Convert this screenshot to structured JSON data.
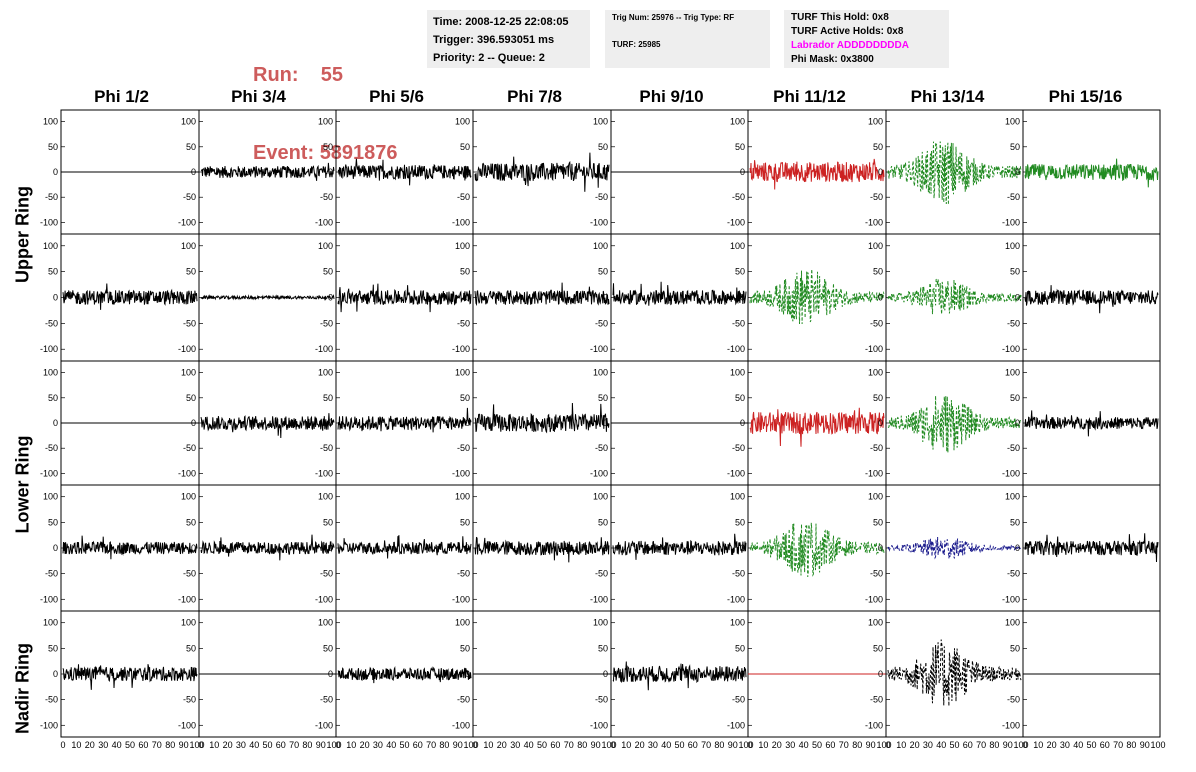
{
  "header": {
    "run_label": "Run:",
    "run_value": "55",
    "event_label": "Event:",
    "event_value": "5891876",
    "time": "Time: 2008-12-25 22:08:05",
    "trigger": "Trigger: 396.593051 ms",
    "priority": "Priority: 2 -- Queue: 2",
    "trig_num": "Trig Num: 25976 -- Trig Type: RF",
    "turf": "TURF: 25985",
    "turf_this_hold": "TURF This Hold: 0x8",
    "turf_active_holds": "TURF Active Holds: 0x8",
    "labrador": "Labrador ADDDDDDDDA",
    "phi_mask": "Phi Mask: 0x3800"
  },
  "phi_columns": [
    "Phi 1/2",
    "Phi 3/4",
    "Phi 5/6",
    "Phi 7/8",
    "Phi 9/10",
    "Phi 11/12",
    "Phi 13/14",
    "Phi 15/16"
  ],
  "rings": [
    "Upper Ring",
    "Lower Ring",
    "Nadir Ring"
  ],
  "y_ticks": [
    "100",
    "50",
    "0",
    "-50",
    "-100"
  ],
  "x_ticks": [
    "0",
    "10",
    "20",
    "30",
    "40",
    "50",
    "60",
    "70",
    "80",
    "90",
    "100"
  ],
  "colors": {
    "black": "#000000",
    "red": "#cc2222",
    "green": "#228b22",
    "blue": "#1a1a8c",
    "header_red": "#cd5c5c",
    "magenta": "#ff00ff"
  },
  "panels": [
    [
      {
        "c": "black",
        "a": 0,
        "d": false
      },
      {
        "c": "black",
        "a": 12,
        "d": false
      },
      {
        "c": "black",
        "a": 14,
        "d": false
      },
      {
        "c": "black",
        "a": 18,
        "d": false
      },
      {
        "c": "black",
        "a": 0,
        "d": false
      },
      {
        "c": "red",
        "a": 20,
        "d": false
      },
      {
        "c": "green",
        "a": 35,
        "d": true
      },
      {
        "c": "green",
        "a": 16,
        "d": false
      }
    ],
    [
      {
        "c": "black",
        "a": 14,
        "d": false
      },
      {
        "c": "black",
        "a": 3,
        "d": false
      },
      {
        "c": "black",
        "a": 14,
        "d": false
      },
      {
        "c": "black",
        "a": 14,
        "d": false
      },
      {
        "c": "black",
        "a": 14,
        "d": false
      },
      {
        "c": "green",
        "a": 30,
        "d": true
      },
      {
        "c": "green",
        "a": 20,
        "d": true
      },
      {
        "c": "black",
        "a": 14,
        "d": false
      }
    ],
    [
      {
        "c": "black",
        "a": 0,
        "d": false
      },
      {
        "c": "black",
        "a": 14,
        "d": false
      },
      {
        "c": "black",
        "a": 14,
        "d": false
      },
      {
        "c": "black",
        "a": 18,
        "d": false
      },
      {
        "c": "black",
        "a": 0,
        "d": false
      },
      {
        "c": "red",
        "a": 22,
        "d": false
      },
      {
        "c": "green",
        "a": 32,
        "d": true
      },
      {
        "c": "black",
        "a": 12,
        "d": false
      }
    ],
    [
      {
        "c": "black",
        "a": 12,
        "d": false
      },
      {
        "c": "black",
        "a": 12,
        "d": false
      },
      {
        "c": "black",
        "a": 12,
        "d": false
      },
      {
        "c": "black",
        "a": 14,
        "d": false
      },
      {
        "c": "black",
        "a": 14,
        "d": false
      },
      {
        "c": "green",
        "a": 30,
        "d": true
      },
      {
        "c": "blue",
        "a": 12,
        "d": true
      },
      {
        "c": "black",
        "a": 14,
        "d": false
      }
    ],
    [
      {
        "c": "black",
        "a": 14,
        "d": false
      },
      {
        "c": "black",
        "a": 0,
        "d": false
      },
      {
        "c": "black",
        "a": 12,
        "d": false
      },
      {
        "c": "black",
        "a": 0,
        "d": false
      },
      {
        "c": "black",
        "a": 16,
        "d": false
      },
      {
        "c": "red",
        "a": 0,
        "d": false
      },
      {
        "c": "black",
        "a": 35,
        "d": true
      },
      {
        "c": "black",
        "a": 0,
        "d": false
      }
    ]
  ]
}
